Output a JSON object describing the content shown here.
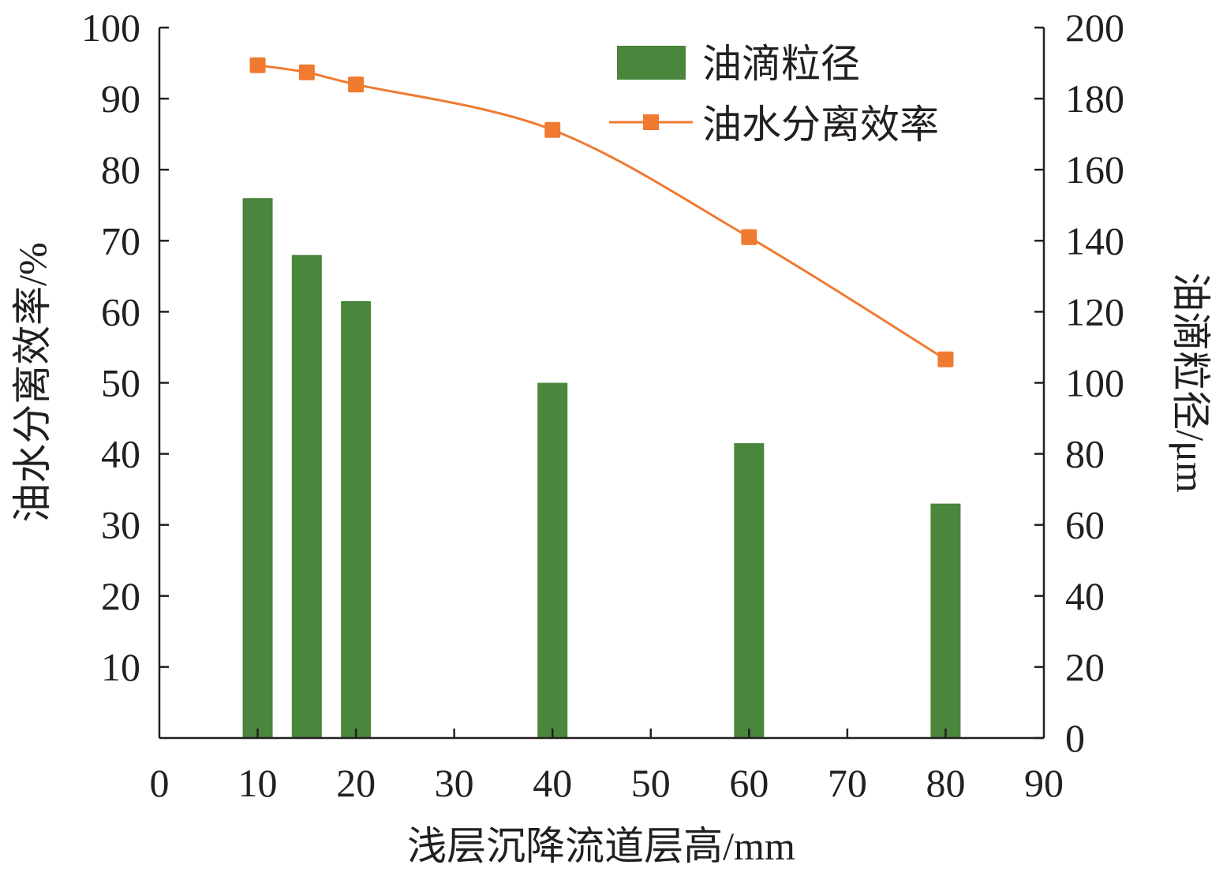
{
  "chart_data": {
    "type": "bar+line",
    "title": "",
    "xlabel": "浅层沉降流道层高/mm",
    "ylabel_left": "油水分离效率/%",
    "ylabel_right": "油滴粒径/μm",
    "xlim": [
      0,
      90
    ],
    "ylim_left": [
      0,
      100
    ],
    "ylim_right": [
      0,
      200
    ],
    "x_ticks": [
      "0",
      "10",
      "20",
      "30",
      "40",
      "50",
      "60",
      "70",
      "80",
      "90"
    ],
    "y_left_ticks": [
      "10",
      "20",
      "30",
      "40",
      "50",
      "60",
      "70",
      "80",
      "90",
      "100"
    ],
    "y_right_ticks": [
      "0",
      "20",
      "40",
      "60",
      "80",
      "100",
      "120",
      "140",
      "160",
      "180",
      "200"
    ],
    "grid": false,
    "legend_position": "top-right",
    "colors": {
      "bar": "#4a863c",
      "line": "#ef7a30"
    },
    "series": [
      {
        "name": "油滴粒径",
        "type": "bar",
        "axis": "right",
        "x": [
          10,
          15,
          20,
          40,
          60,
          80
        ],
        "values": [
          152,
          136,
          123,
          100,
          83,
          66
        ]
      },
      {
        "name": "油水分离效率",
        "type": "line",
        "axis": "left",
        "x": [
          10,
          15,
          20,
          40,
          60,
          80
        ],
        "values": [
          94.7,
          93.7,
          92.0,
          85.6,
          70.5,
          53.3
        ]
      }
    ]
  }
}
